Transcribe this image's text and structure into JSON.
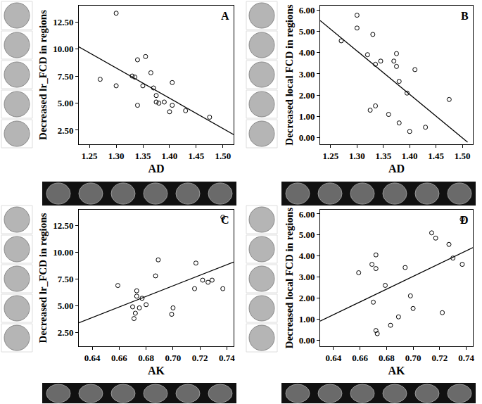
{
  "chart_data": [
    {
      "type": "scatter",
      "annotations": [
        {
          "text": "A"
        }
      ],
      "x_label": "AD",
      "y_label": "Decreased lr_FCD in regions",
      "xlim": [
        1.23,
        1.52
      ],
      "ylim": [
        1.2,
        14.0
      ],
      "xticks": [
        1.25,
        {
          "value": 1.3,
          "label": "1.30"
        },
        1.35,
        {
          "value": 1.4,
          "label": "1.40"
        },
        1.45,
        {
          "value": 1.5,
          "label": "1.50"
        }
      ],
      "yticks": [
        {
          "value": 2.5,
          "label": "2.50"
        },
        {
          "value": 5,
          "label": "5.00"
        },
        {
          "value": 7.5,
          "label": "7.50"
        },
        {
          "value": 10,
          "label": "10.00"
        },
        {
          "value": 12.5,
          "label": "12.50"
        }
      ],
      "grid": false,
      "series": [
        {
          "type": "scatter",
          "marker": "circle-open",
          "color": "#000000",
          "x": [
            1.3,
            1.3,
            1.27,
            1.33,
            1.335,
            1.34,
            1.34,
            1.35,
            1.355,
            1.365,
            1.37,
            1.375,
            1.375,
            1.38,
            1.39,
            1.4,
            1.405,
            1.405,
            1.43,
            1.475
          ],
          "values": [
            13.3,
            6.6,
            7.2,
            7.5,
            7.4,
            9.0,
            4.8,
            6.6,
            9.3,
            7.8,
            6.4,
            5.7,
            5.1,
            5.0,
            5.1,
            4.2,
            6.9,
            4.8,
            4.3,
            3.7
          ]
        },
        {
          "type": "line",
          "line_style": "solid",
          "color": "#000000",
          "x": [
            1.23,
            1.52
          ],
          "values": [
            10.2,
            2.1
          ]
        }
      ]
    },
    {
      "type": "scatter",
      "annotations": [
        {
          "text": "B"
        }
      ],
      "x_label": "AD",
      "y_label": "Decreased local FCD in regions",
      "xlim": [
        1.23,
        1.52
      ],
      "ylim": [
        -0.3,
        6.2
      ],
      "xticks": [
        1.25,
        {
          "value": 1.3,
          "label": "1.30"
        },
        1.35,
        {
          "value": 1.4,
          "label": "1.40"
        },
        1.45,
        {
          "value": 1.5,
          "label": "1.50"
        }
      ],
      "yticks": [
        {
          "value": 0,
          "label": "0.00"
        },
        {
          "value": 1,
          "label": "1.00"
        },
        {
          "value": 2,
          "label": "2.00"
        },
        {
          "value": 3,
          "label": "3.00"
        },
        {
          "value": 4,
          "label": "4.00"
        },
        {
          "value": 5,
          "label": "5.00"
        },
        {
          "value": 6,
          "label": "6.00"
        }
      ],
      "grid": false,
      "series": [
        {
          "type": "scatter",
          "marker": "circle-open",
          "color": "#000000",
          "x": [
            1.27,
            1.3,
            1.3,
            1.32,
            1.33,
            1.335,
            1.335,
            1.345,
            1.325,
            1.36,
            1.37,
            1.375,
            1.375,
            1.38,
            1.38,
            1.395,
            1.4,
            1.41,
            1.43,
            1.475
          ],
          "values": [
            4.55,
            5.75,
            5.15,
            3.9,
            4.85,
            3.45,
            1.5,
            3.6,
            1.3,
            1.1,
            3.6,
            3.95,
            3.35,
            0.7,
            2.65,
            2.1,
            0.3,
            3.2,
            0.5,
            1.8
          ]
        },
        {
          "type": "line",
          "line_style": "solid",
          "color": "#000000",
          "x": [
            1.23,
            1.51
          ],
          "values": [
            5.5,
            -0.2
          ]
        }
      ]
    },
    {
      "type": "scatter",
      "annotations": [
        {
          "text": "C"
        }
      ],
      "x_label": "AK",
      "y_label": "Decreased lr_FCD in regions",
      "xlim": [
        0.63,
        0.745
      ],
      "ylim": [
        1.2,
        14.0
      ],
      "xticks": [
        0.64,
        0.66,
        0.68,
        {
          "value": 0.7,
          "label": "0.70"
        },
        0.72,
        0.74
      ],
      "yticks": [
        {
          "value": 2.5,
          "label": "2.50"
        },
        {
          "value": 5,
          "label": "5.00"
        },
        {
          "value": 7.5,
          "label": "7.50"
        },
        {
          "value": 10,
          "label": "10.00"
        },
        {
          "value": 12.5,
          "label": "12.50"
        }
      ],
      "grid": false,
      "series": [
        {
          "type": "scatter",
          "marker": "circle-open",
          "color": "#000000",
          "x": [
            0.659,
            0.67,
            0.671,
            0.672,
            0.673,
            0.673,
            0.677,
            0.68,
            0.687,
            0.689,
            0.699,
            0.7,
            0.716,
            0.717,
            0.722,
            0.726,
            0.729,
            0.737,
            0.737,
            0.675
          ],
          "values": [
            6.9,
            4.9,
            3.8,
            4.3,
            5.9,
            6.4,
            5.7,
            5.1,
            7.8,
            9.3,
            4.2,
            4.8,
            6.6,
            9.0,
            7.4,
            7.2,
            7.4,
            6.6,
            13.3,
            4.8
          ]
        },
        {
          "type": "line",
          "line_style": "solid",
          "color": "#000000",
          "x": [
            0.63,
            0.745
          ],
          "values": [
            3.4,
            9.1
          ]
        }
      ]
    },
    {
      "type": "scatter",
      "annotations": [
        {
          "text": "D"
        }
      ],
      "x_label": "AK",
      "y_label": "Decreased local FCD in regions",
      "xlim": [
        0.63,
        0.745
      ],
      "ylim": [
        -0.3,
        6.2
      ],
      "xticks": [
        0.64,
        0.66,
        0.68,
        {
          "value": 0.7,
          "label": "0.70"
        },
        0.72,
        0.74
      ],
      "yticks": [
        {
          "value": 0,
          "label": "0.00"
        },
        {
          "value": 1,
          "label": "1.00"
        },
        {
          "value": 2,
          "label": "2.00"
        },
        {
          "value": 3,
          "label": "3.00"
        },
        {
          "value": 4,
          "label": "4.00"
        },
        {
          "value": 5,
          "label": "5.00"
        },
        {
          "value": 6,
          "label": "6.00"
        }
      ],
      "grid": false,
      "series": [
        {
          "type": "scatter",
          "marker": "circle-open",
          "color": "#000000",
          "x": [
            0.659,
            0.669,
            0.67,
            0.672,
            0.672,
            0.672,
            0.673,
            0.679,
            0.683,
            0.689,
            0.694,
            0.698,
            0.7,
            0.714,
            0.717,
            0.722,
            0.727,
            0.73,
            0.737,
            0.737
          ],
          "values": [
            3.2,
            3.6,
            1.8,
            4.05,
            3.4,
            0.45,
            0.3,
            2.6,
            0.7,
            1.1,
            3.45,
            2.1,
            1.5,
            5.1,
            4.85,
            1.3,
            4.55,
            3.9,
            5.75,
            3.6
          ]
        },
        {
          "type": "line",
          "line_style": "solid",
          "color": "#000000",
          "x": [
            0.63,
            0.745
          ],
          "values": [
            0.9,
            4.4
          ]
        }
      ]
    }
  ]
}
